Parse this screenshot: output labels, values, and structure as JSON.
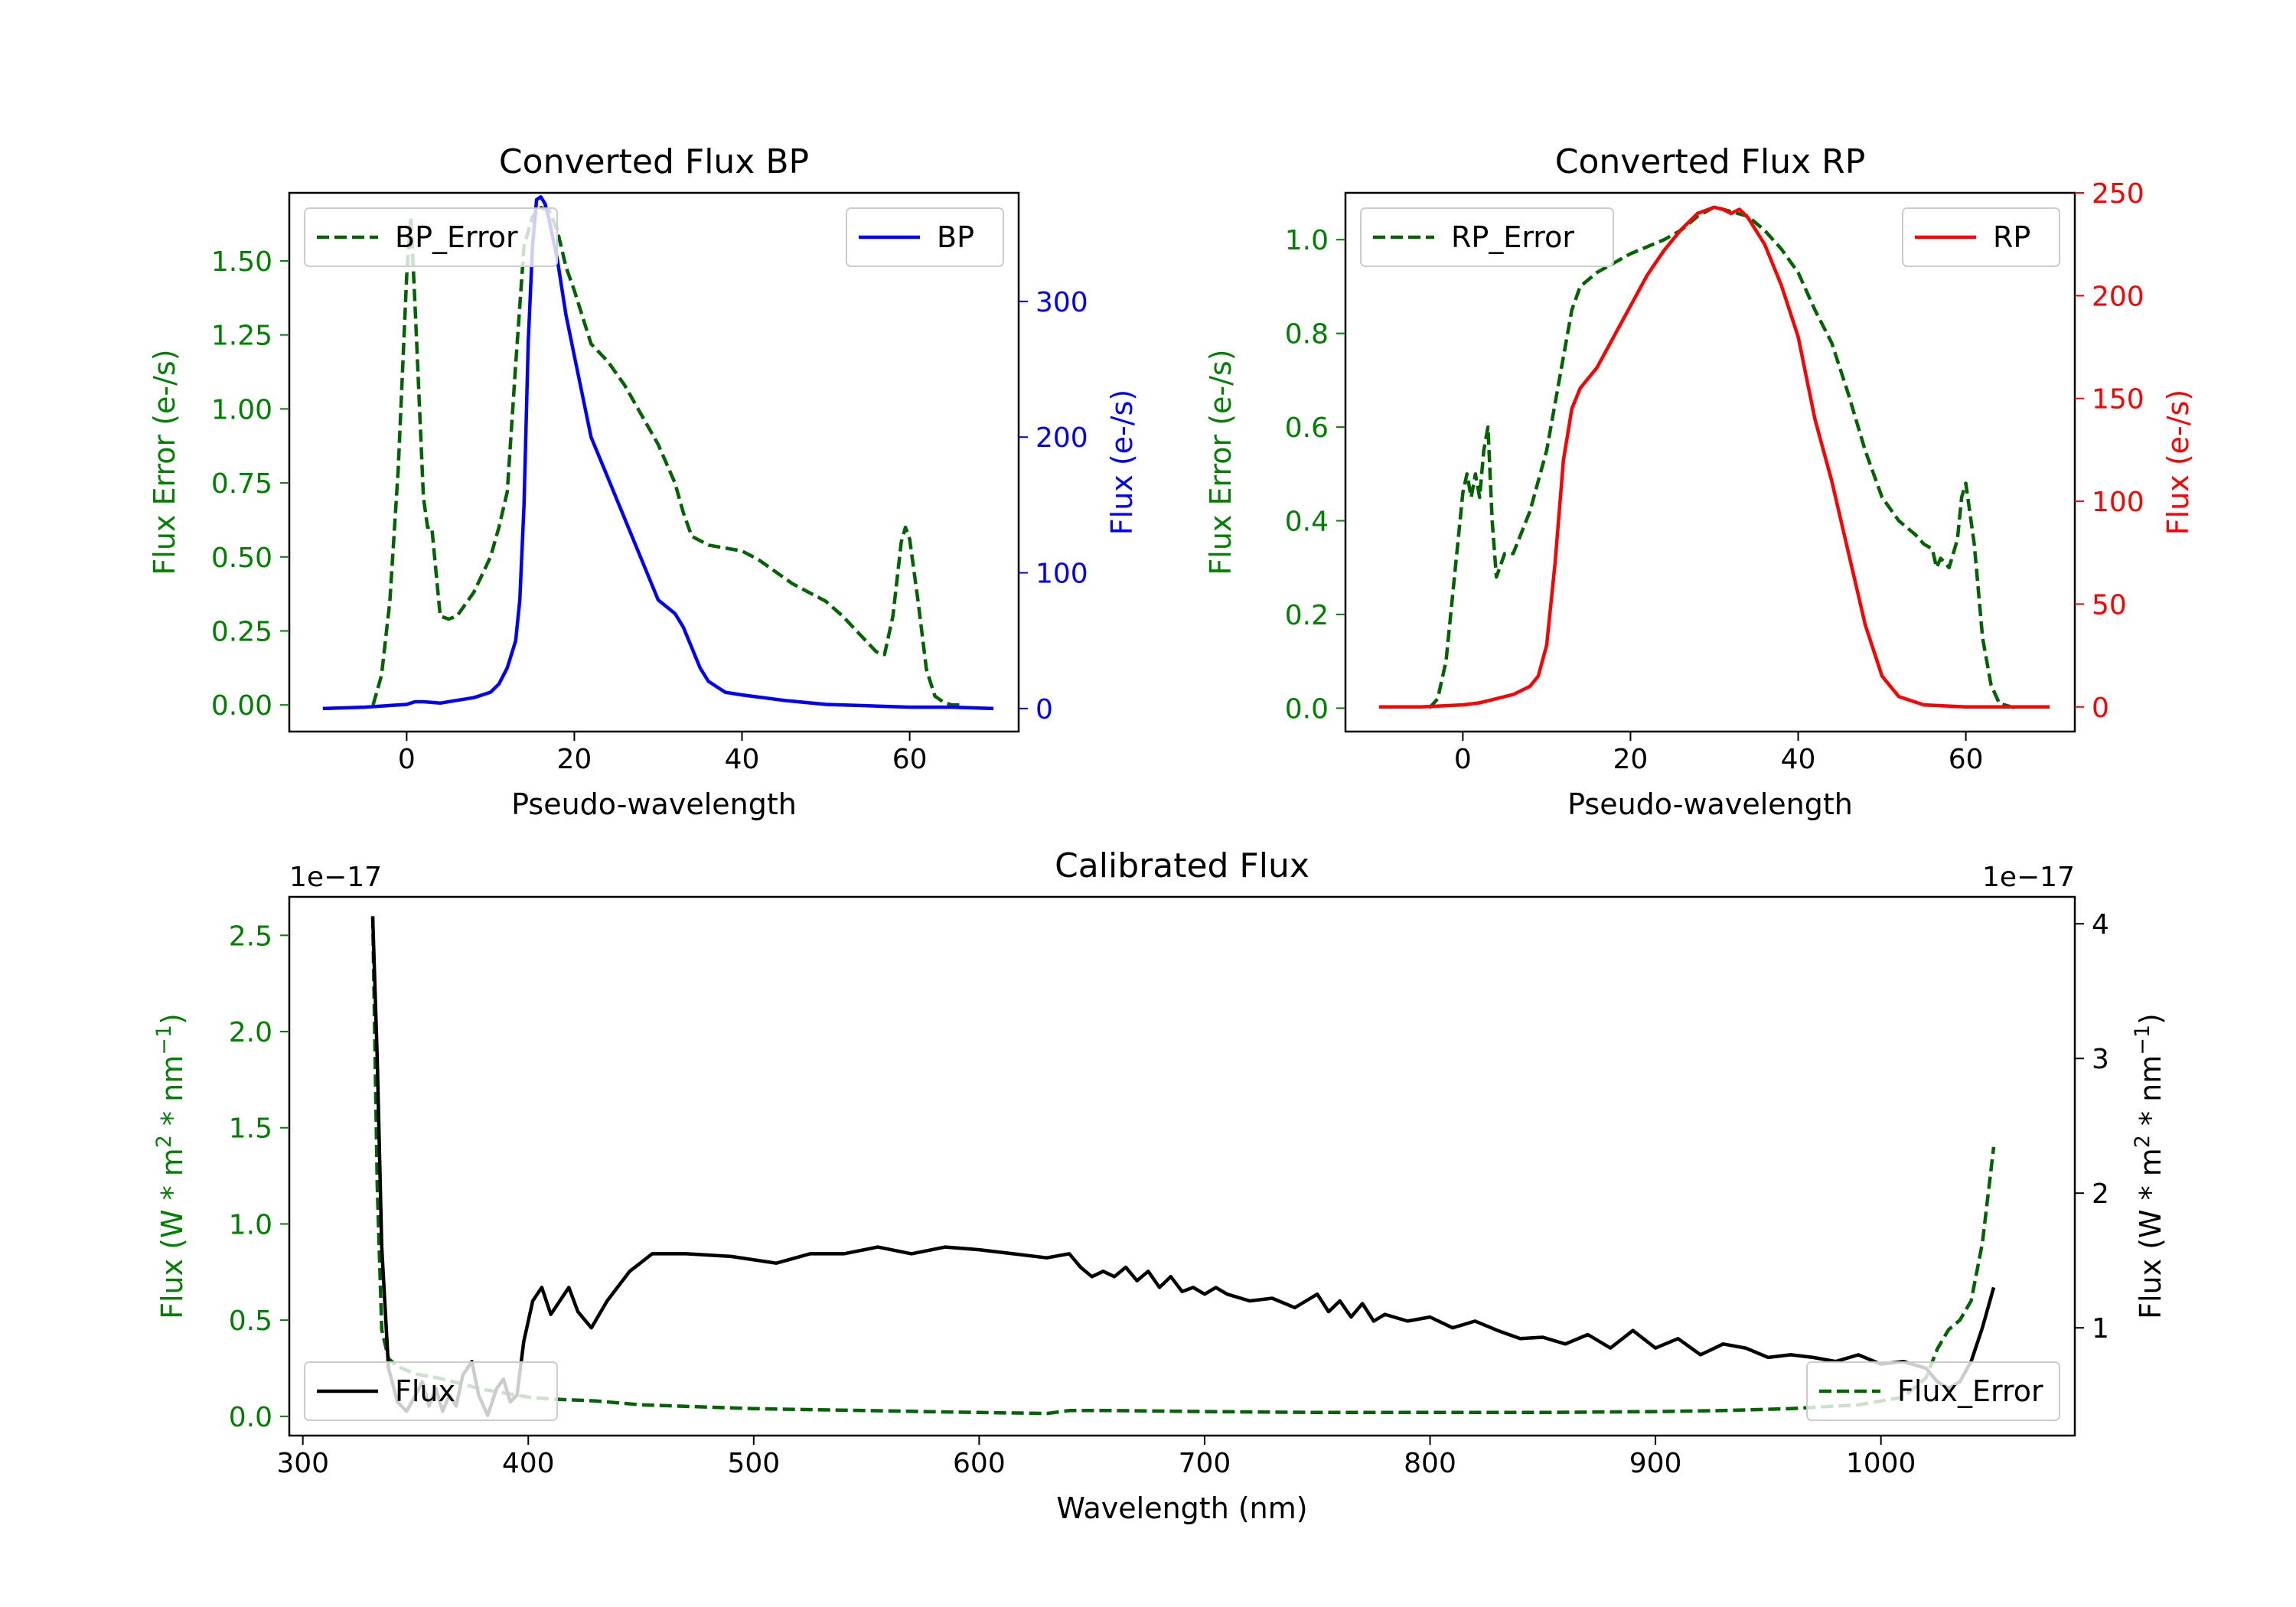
{
  "chart_data": [
    {
      "type": "line",
      "title": "Converted Flux BP",
      "xlabel": "Pseudo-wavelength",
      "ylabel_left": "Flux Error (e-/s)",
      "ylabel_right": "Flux (e-/s)",
      "xlim": [
        -14,
        73
      ],
      "ylim_left": [
        -0.09,
        1.73
      ],
      "ylim_right": [
        -17,
        380
      ],
      "x_ticks": [
        0,
        20,
        40,
        60
      ],
      "y_ticks_left": [
        0.0,
        0.25,
        0.5,
        0.75,
        1.0,
        1.25,
        1.5
      ],
      "y_ticks_left_labels": [
        "0.00",
        "0.25",
        "0.50",
        "0.75",
        "1.00",
        "1.25",
        "1.50"
      ],
      "y_ticks_right": [
        0,
        100,
        200,
        300
      ],
      "left_color": "#008000",
      "right_color": "#0000ff",
      "legend_left": {
        "label": "BP_Error",
        "style": "dashed",
        "color": "#006400",
        "position": "upper left"
      },
      "legend_right": {
        "label": "BP",
        "style": "solid",
        "color": "#0000ff",
        "position": "upper right"
      },
      "series": [
        {
          "name": "BP_Error",
          "axis": "left",
          "color": "#006400",
          "style": "dashed",
          "x": [
            -4,
            -3,
            -2,
            -1,
            0,
            0.5,
            1,
            2,
            2.5,
            3,
            3.5,
            4,
            5,
            6,
            8,
            10,
            11,
            12,
            13,
            14,
            15,
            16,
            17,
            18,
            19,
            20,
            22,
            24,
            26,
            28,
            30,
            32,
            33,
            34,
            36,
            38,
            40,
            42,
            44,
            46,
            48,
            50,
            52,
            54,
            56,
            57,
            58,
            59,
            59.5,
            60,
            61,
            62,
            63,
            64,
            65,
            66
          ],
          "y": [
            0.0,
            0.1,
            0.35,
            0.8,
            1.45,
            1.65,
            1.35,
            0.7,
            0.6,
            0.6,
            0.45,
            0.3,
            0.29,
            0.3,
            0.38,
            0.5,
            0.6,
            0.72,
            1.15,
            1.55,
            1.65,
            1.68,
            1.67,
            1.6,
            1.48,
            1.4,
            1.22,
            1.16,
            1.08,
            0.98,
            0.88,
            0.75,
            0.65,
            0.57,
            0.54,
            0.53,
            0.52,
            0.49,
            0.45,
            0.41,
            0.38,
            0.35,
            0.3,
            0.24,
            0.18,
            0.17,
            0.3,
            0.55,
            0.6,
            0.56,
            0.35,
            0.12,
            0.03,
            0.01,
            0.0,
            0.0
          ]
        },
        {
          "name": "BP",
          "axis": "right",
          "color": "#0000ff",
          "style": "solid",
          "x": [
            -10,
            -5,
            0,
            1,
            2,
            4,
            6,
            8,
            10,
            11,
            12,
            13,
            13.5,
            14,
            14.5,
            15,
            15.5,
            16,
            16.5,
            17,
            18,
            19,
            20,
            22,
            24,
            26,
            28,
            30,
            32,
            33,
            34,
            35,
            36,
            38,
            40,
            45,
            50,
            55,
            60,
            65,
            70
          ],
          "y": [
            0,
            1,
            3,
            5,
            5,
            4,
            6,
            8,
            12,
            18,
            30,
            50,
            80,
            150,
            270,
            340,
            375,
            377,
            372,
            360,
            330,
            290,
            260,
            200,
            170,
            140,
            110,
            80,
            70,
            60,
            45,
            30,
            20,
            12,
            10,
            6,
            3,
            2,
            1,
            1,
            0
          ]
        }
      ]
    },
    {
      "type": "line",
      "title": "Converted Flux RP",
      "xlabel": "Pseudo-wavelength",
      "ylabel_left": "Flux Error (e-/s)",
      "ylabel_right": "Flux (e-/s)",
      "xlim": [
        -14,
        73
      ],
      "ylim_left": [
        -0.05,
        1.1
      ],
      "ylim_right": [
        -12,
        250
      ],
      "x_ticks": [
        0,
        20,
        40,
        60
      ],
      "y_ticks_left": [
        0.0,
        0.2,
        0.4,
        0.6,
        0.8,
        1.0
      ],
      "y_ticks_left_labels": [
        "0.0",
        "0.2",
        "0.4",
        "0.6",
        "0.8",
        "1.0"
      ],
      "y_ticks_right": [
        0,
        50,
        100,
        150,
        200,
        250
      ],
      "left_color": "#008000",
      "right_color": "#ff0000",
      "legend_left": {
        "label": "RP_Error",
        "style": "dashed",
        "color": "#006400",
        "position": "upper left"
      },
      "legend_right": {
        "label": "RP",
        "style": "solid",
        "color": "#ff0000",
        "position": "upper right"
      },
      "series": [
        {
          "name": "RP_Error",
          "axis": "left",
          "color": "#006400",
          "style": "dashed",
          "x": [
            -4,
            -3,
            -2,
            -1,
            0,
            0.5,
            1,
            1.5,
            2,
            2.5,
            3,
            3.5,
            4,
            5,
            6,
            8,
            10,
            12,
            13,
            14,
            16,
            18,
            20,
            24,
            26,
            28,
            30,
            32,
            34,
            36,
            38,
            40,
            42,
            44,
            46,
            48,
            50,
            52,
            54,
            55,
            56,
            56.5,
            57,
            58,
            59,
            59.5,
            60,
            61,
            62,
            63,
            64,
            66
          ],
          "y": [
            0.0,
            0.02,
            0.1,
            0.28,
            0.46,
            0.5,
            0.45,
            0.5,
            0.45,
            0.55,
            0.6,
            0.4,
            0.28,
            0.33,
            0.33,
            0.42,
            0.55,
            0.75,
            0.85,
            0.9,
            0.93,
            0.95,
            0.97,
            1.0,
            1.02,
            1.05,
            1.07,
            1.06,
            1.05,
            1.02,
            0.98,
            0.93,
            0.85,
            0.78,
            0.67,
            0.55,
            0.45,
            0.4,
            0.37,
            0.35,
            0.34,
            0.3,
            0.32,
            0.3,
            0.36,
            0.45,
            0.48,
            0.35,
            0.15,
            0.05,
            0.01,
            0.0
          ]
        },
        {
          "name": "RP",
          "axis": "right",
          "color": "#ff0000",
          "style": "solid",
          "x": [
            -10,
            -5,
            0,
            2,
            4,
            6,
            8,
            9,
            10,
            11,
            12,
            13,
            14,
            16,
            18,
            20,
            22,
            24,
            26,
            28,
            30,
            31,
            32,
            33,
            34,
            36,
            38,
            40,
            42,
            44,
            46,
            48,
            50,
            52,
            55,
            60,
            65,
            70
          ],
          "y": [
            0,
            0,
            1,
            2,
            4,
            6,
            10,
            15,
            30,
            70,
            120,
            145,
            155,
            165,
            180,
            195,
            210,
            222,
            232,
            240,
            243,
            242,
            240,
            242,
            238,
            225,
            205,
            180,
            140,
            110,
            75,
            40,
            15,
            5,
            1,
            0,
            0,
            0
          ]
        }
      ]
    },
    {
      "type": "line",
      "title": "Calibrated Flux",
      "xlabel": "Wavelength (nm)",
      "ylabel_left_text": "Flux (W * m",
      "ylabel_left_sup": "2",
      "ylabel_left_mid": " * nm",
      "ylabel_left_sup2": "−1",
      "ylabel_left_end": ")",
      "ylabel_right_text": "Flux (W * m",
      "ylabel_right_sup": "2",
      "ylabel_right_mid": " * nm",
      "ylabel_right_sup2": "−1",
      "ylabel_right_end": ")",
      "offset_left": "1e−17",
      "offset_right": "1e−17",
      "xlim": [
        294,
        1086
      ],
      "ylim_left": [
        -0.1,
        2.7
      ],
      "ylim_right": [
        0.2,
        4.2
      ],
      "x_ticks": [
        300,
        400,
        500,
        600,
        700,
        800,
        900,
        1000
      ],
      "y_ticks_left": [
        0.0,
        0.5,
        1.0,
        1.5,
        2.0,
        2.5
      ],
      "y_ticks_left_labels": [
        "0.0",
        "0.5",
        "1.0",
        "1.5",
        "2.0",
        "2.5"
      ],
      "y_ticks_right": [
        1,
        2,
        3,
        4
      ],
      "left_color": "#008000",
      "right_color": "#000000",
      "legend_left": {
        "label": "Flux",
        "style": "solid",
        "color": "#000000",
        "position": "lower left"
      },
      "legend_right": {
        "label": "Flux_Error",
        "style": "dashed",
        "color": "#006400",
        "position": "lower right"
      },
      "series": [
        {
          "name": "Flux_Error",
          "axis": "left",
          "color": "#006400",
          "style": "dashed",
          "x": [
            331,
            333,
            335,
            338,
            342,
            350,
            360,
            370,
            380,
            390,
            400,
            410,
            430,
            450,
            500,
            550,
            600,
            630,
            640,
            660,
            700,
            750,
            800,
            850,
            900,
            930,
            960,
            990,
            1010,
            1020,
            1025,
            1030,
            1035,
            1040,
            1045,
            1048,
            1050
          ],
          "y": [
            2.6,
            1.2,
            0.45,
            0.3,
            0.26,
            0.22,
            0.2,
            0.17,
            0.14,
            0.12,
            0.1,
            0.09,
            0.08,
            0.06,
            0.04,
            0.03,
            0.02,
            0.015,
            0.03,
            0.03,
            0.025,
            0.02,
            0.02,
            0.02,
            0.025,
            0.03,
            0.04,
            0.06,
            0.1,
            0.2,
            0.35,
            0.45,
            0.5,
            0.6,
            0.9,
            1.2,
            1.4
          ]
        },
        {
          "name": "Flux",
          "axis": "right",
          "color": "#000000",
          "style": "solid",
          "x": [
            331,
            333,
            335,
            338,
            342,
            346,
            350,
            353,
            356,
            359,
            362,
            365,
            368,
            371,
            375,
            378,
            382,
            386,
            389,
            392,
            395,
            398,
            402,
            406,
            410,
            414,
            418,
            422,
            428,
            435,
            445,
            455,
            470,
            490,
            510,
            525,
            540,
            555,
            570,
            585,
            600,
            615,
            630,
            640,
            645,
            650,
            655,
            660,
            665,
            670,
            675,
            680,
            685,
            690,
            695,
            700,
            705,
            710,
            720,
            730,
            740,
            745,
            750,
            755,
            760,
            765,
            770,
            775,
            780,
            790,
            800,
            810,
            820,
            830,
            840,
            850,
            860,
            870,
            880,
            890,
            900,
            910,
            920,
            930,
            940,
            950,
            960,
            970,
            980,
            990,
            1000,
            1010,
            1020,
            1025,
            1030,
            1035,
            1040,
            1045,
            1050
          ],
          "y": [
            4.05,
            3.0,
            1.6,
            0.7,
            0.45,
            0.38,
            0.5,
            0.6,
            0.42,
            0.55,
            0.38,
            0.5,
            0.42,
            0.65,
            0.75,
            0.5,
            0.35,
            0.55,
            0.62,
            0.45,
            0.5,
            0.9,
            1.2,
            1.3,
            1.1,
            1.2,
            1.3,
            1.12,
            1.0,
            1.2,
            1.42,
            1.55,
            1.55,
            1.53,
            1.48,
            1.55,
            1.55,
            1.6,
            1.55,
            1.6,
            1.58,
            1.55,
            1.52,
            1.55,
            1.45,
            1.38,
            1.42,
            1.38,
            1.45,
            1.35,
            1.42,
            1.3,
            1.38,
            1.27,
            1.3,
            1.25,
            1.3,
            1.25,
            1.2,
            1.22,
            1.15,
            1.2,
            1.25,
            1.12,
            1.2,
            1.08,
            1.18,
            1.05,
            1.1,
            1.05,
            1.08,
            1.0,
            1.05,
            0.98,
            0.92,
            0.93,
            0.88,
            0.95,
            0.85,
            0.98,
            0.85,
            0.92,
            0.8,
            0.88,
            0.85,
            0.78,
            0.8,
            0.78,
            0.75,
            0.8,
            0.73,
            0.75,
            0.7,
            0.6,
            0.55,
            0.6,
            0.75,
            1.0,
            1.3
          ]
        }
      ]
    }
  ]
}
